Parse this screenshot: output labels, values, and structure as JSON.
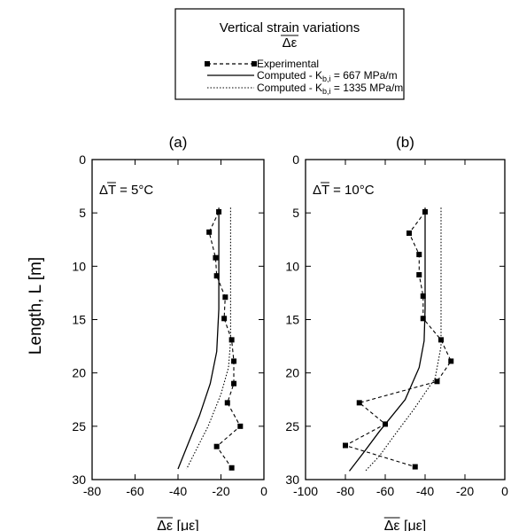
{
  "legend": {
    "title_line1": "Vertical strain variations",
    "title_line2": "Δε",
    "entries": [
      {
        "label": "Experimental",
        "style": "dashed-markers"
      },
      {
        "label": "Computed - K",
        "sub": "b,i",
        "suffix": " = 667 MPa/m",
        "style": "solid"
      },
      {
        "label": "Computed - K",
        "sub": "b,i",
        "suffix": " = 1335 MPa/m",
        "style": "dotted"
      }
    ]
  },
  "chart_data": [
    {
      "type": "line",
      "panel_title": "(a)",
      "annotation": {
        "prefix": "ΔT",
        "suffix": " = 5°C"
      },
      "ylabel": "Length, L [m]",
      "xlabel": {
        "symbol": "Δε",
        "unit": " [με]"
      },
      "xlim": [
        -80,
        0
      ],
      "ylim": [
        0,
        30
      ],
      "y_inverted": true,
      "xticks": [
        -80,
        -60,
        -40,
        -20,
        0
      ],
      "yticks": [
        0,
        5,
        10,
        15,
        20,
        25,
        30
      ],
      "series": [
        {
          "name": "Experimental",
          "style": "dashed-markers",
          "points": [
            [
              -21,
              4.9
            ],
            [
              -25.5,
              6.8
            ],
            [
              -22.5,
              9.2
            ],
            [
              -22,
              10.9
            ],
            [
              -18,
              12.9
            ],
            [
              -18.5,
              14.9
            ],
            [
              -15,
              16.9
            ],
            [
              -14,
              18.9
            ],
            [
              -14,
              21.0
            ],
            [
              -17,
              22.8
            ],
            [
              -11,
              25.0
            ],
            [
              -22,
              26.9
            ],
            [
              -15,
              28.9
            ]
          ]
        },
        {
          "name": "Computed - Kb,i = 667 MPa/m",
          "style": "solid",
          "points": [
            [
              -21,
              4.5
            ],
            [
              -21,
              14.0
            ],
            [
              -22,
              18.0
            ],
            [
              -25,
              21.0
            ],
            [
              -30,
              24.0
            ],
            [
              -35,
              26.5
            ],
            [
              -40,
              29.0
            ]
          ]
        },
        {
          "name": "Computed - Kb,i = 1335 MPa/m",
          "style": "dotted",
          "points": [
            [
              -15.5,
              4.5
            ],
            [
              -15.5,
              17.0
            ],
            [
              -16.5,
              19.5
            ],
            [
              -20,
              22.0
            ],
            [
              -26,
              25.0
            ],
            [
              -31,
              27.0
            ],
            [
              -36,
              29.0
            ]
          ]
        }
      ]
    },
    {
      "type": "line",
      "panel_title": "(b)",
      "annotation": {
        "prefix": "ΔT",
        "suffix": " = 10°C"
      },
      "xlabel": {
        "symbol": "Δε",
        "unit": " [με]"
      },
      "xlim": [
        -100,
        0
      ],
      "ylim": [
        0,
        30
      ],
      "y_inverted": true,
      "xticks": [
        -100,
        -80,
        -60,
        -40,
        -20,
        0
      ],
      "yticks": [
        0,
        5,
        10,
        15,
        20,
        25,
        30
      ],
      "series": [
        {
          "name": "Experimental",
          "style": "dashed-markers",
          "points": [
            [
              -40,
              4.9
            ],
            [
              -48,
              6.9
            ],
            [
              -43,
              8.9
            ],
            [
              -43,
              10.8
            ],
            [
              -41,
              12.8
            ],
            [
              -41,
              14.9
            ],
            [
              -32,
              16.9
            ],
            [
              -27,
              18.9
            ],
            [
              -34,
              20.8
            ],
            [
              -73,
              22.8
            ],
            [
              -60,
              24.8
            ],
            [
              -80,
              26.8
            ],
            [
              -45,
              28.8
            ]
          ]
        },
        {
          "name": "Computed - Kb,i = 667 MPa/m",
          "style": "solid",
          "points": [
            [
              -40,
              4.5
            ],
            [
              -40,
              14.0
            ],
            [
              -40.5,
              17.0
            ],
            [
              -43,
              19.5
            ],
            [
              -50,
              22.5
            ],
            [
              -63,
              25.5
            ],
            [
              -71,
              27.5
            ],
            [
              -78,
              29.2
            ]
          ]
        },
        {
          "name": "Computed - Kb,i = 1335 MPa/m",
          "style": "dotted",
          "points": [
            [
              -32,
              4.5
            ],
            [
              -32,
              17.5
            ],
            [
              -35,
              20.5
            ],
            [
              -46,
              23.5
            ],
            [
              -56,
              26.0
            ],
            [
              -63,
              27.8
            ],
            [
              -70,
              29.2
            ]
          ]
        }
      ]
    }
  ]
}
